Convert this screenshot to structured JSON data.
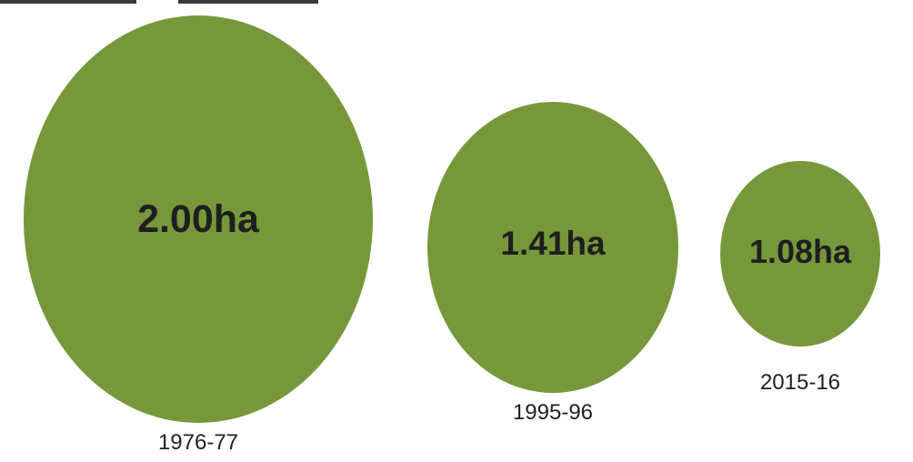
{
  "chart_data": {
    "type": "bubble",
    "unit": "ha",
    "categories": [
      "1976-77",
      "1995-96",
      "2015-16"
    ],
    "values": [
      2.0,
      1.41,
      1.08
    ],
    "value_labels": [
      "2.00ha",
      "1.41ha",
      "1.08ha"
    ],
    "color": "#76983a",
    "title": "",
    "xlabel": "",
    "ylabel": ""
  }
}
